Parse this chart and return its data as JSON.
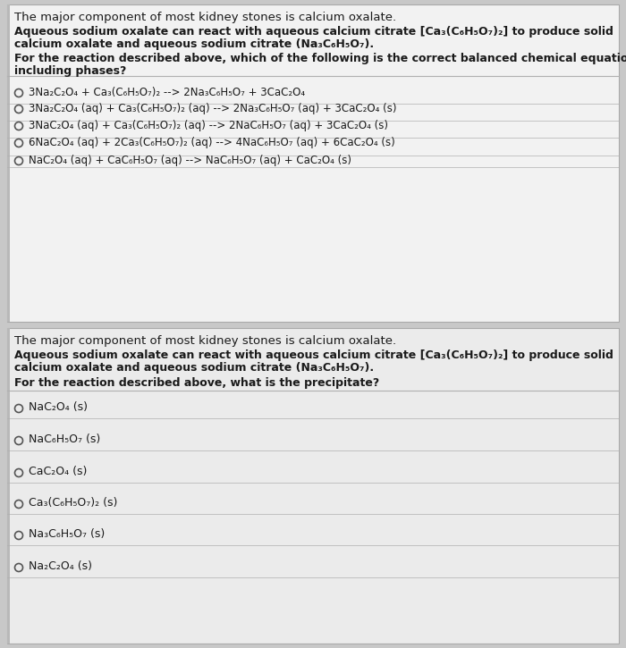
{
  "fig_w": 7.0,
  "fig_h": 7.25,
  "dpi": 100,
  "bg_color": "#c8c8c8",
  "panel1_bg": "#f2f2f2",
  "panel2_bg": "#ebebeb",
  "panel_edge": "#aaaaaa",
  "sep_color": "#b0b0b0",
  "text_color": "#1a1a1a",
  "circle_edge": "#555555",
  "title1": "The major component of most kidney stones is calcium oxalate.",
  "intro1_l1": "Aqueous sodium oxalate can react with aqueous calcium citrate [Ca₃(C₆H₅O₇)₂] to produce solid",
  "intro1_l2": "calcium oxalate and aqueous sodium citrate (Na₃C₆H₅O₇).",
  "q1_l1": "For the reaction described above, which of the following is the correct balanced chemical equation",
  "q1_l2": "including phases?",
  "opts1": [
    "3Na₂C₂O₄ + Ca₃(C₆H₅O₇)₂ --> 2Na₃C₆H₅O₇ + 3CaC₂O₄",
    "3Na₂C₂O₄ (aq) + Ca₃(C₆H₅O₇)₂ (aq) --> 2Na₃C₆H₅O₇ (aq) + 3CaC₂O₄ (s)",
    "3NaC₂O₄ (aq) + Ca₃(C₆H₅O₇)₂ (aq) --> 2NaC₆H₅O₇ (aq) + 3CaC₂O₄ (s)",
    "6NaC₂O₄ (aq) + 2Ca₃(C₆H₅O₇)₂ (aq) --> 4NaC₆H₅O₇ (aq) + 6CaC₂O₄ (s)",
    "NaC₂O₄ (aq) + CaC₆H₅O₇ (aq) --> NaC₆H₅O₇ (aq) + CaC₂O₄ (s)"
  ],
  "title2": "The major component of most kidney stones is calcium oxalate.",
  "intro2_l1": "Aqueous sodium oxalate can react with aqueous calcium citrate [Ca₃(C₆H₅O₇)₂] to produce solid",
  "intro2_l2": "calcium oxalate and aqueous sodium citrate (Na₃C₆H₅O₇).",
  "q2": "For the reaction described above, what is the precipitate?",
  "opts2": [
    "NaC₂O₄ (s)",
    "NaC₆H₅O₇ (s)",
    "CaC₂O₄ (s)",
    "Ca₃(C₆H₅O₇)₂ (s)",
    "Na₃C₆H₅O₇ (s)",
    "Na₂C₂O₄ (s)"
  ],
  "fs_title": 9.5,
  "fs_body": 9.0,
  "fs_question": 9.0,
  "fs_option": 8.5
}
